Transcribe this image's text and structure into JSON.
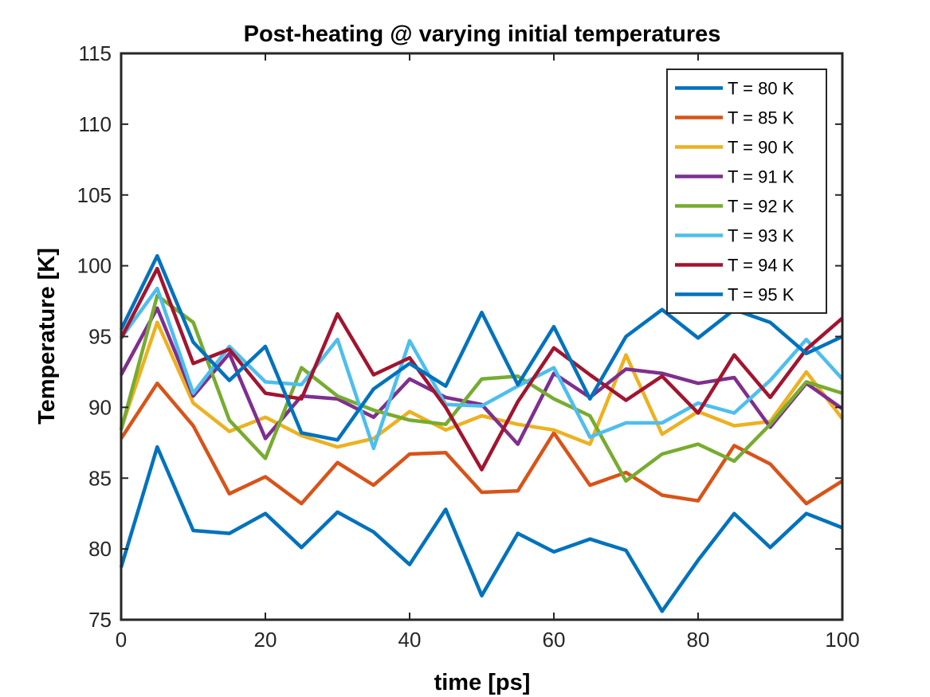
{
  "chart_data": {
    "type": "line",
    "title": "Post-heating @ varying initial temperatures",
    "xlabel": "time [ps]",
    "ylabel": "Temperature [K]",
    "xlim": [
      0,
      100
    ],
    "ylim": [
      75,
      115
    ],
    "xticks": [
      0,
      20,
      40,
      60,
      80,
      100
    ],
    "yticks": [
      75,
      80,
      85,
      90,
      95,
      100,
      105,
      110,
      115
    ],
    "grid": false,
    "legend_position": "top-right",
    "x": [
      0,
      5,
      10,
      15,
      20,
      25,
      30,
      35,
      40,
      45,
      50,
      55,
      60,
      65,
      70,
      75,
      80,
      85,
      90,
      95,
      100
    ],
    "series": [
      {
        "name": "T = 80 K",
        "color": "#0072BD",
        "values": [
          78.7,
          87.2,
          81.3,
          81.1,
          82.5,
          80.1,
          82.6,
          81.2,
          78.9,
          82.8,
          76.7,
          81.1,
          79.8,
          80.7,
          79.9,
          75.6,
          79.2,
          82.5,
          80.1,
          82.5,
          81.5
        ]
      },
      {
        "name": "T = 85 K",
        "color": "#D95319",
        "values": [
          87.8,
          91.7,
          88.7,
          83.9,
          85.1,
          83.2,
          86.1,
          84.5,
          86.7,
          86.8,
          84.0,
          84.1,
          88.2,
          84.5,
          85.4,
          83.8,
          83.4,
          87.3,
          86.0,
          83.2,
          84.8
        ]
      },
      {
        "name": "T = 90 K",
        "color": "#EDB120",
        "values": [
          88.5,
          96.0,
          90.3,
          88.3,
          89.3,
          88.0,
          87.2,
          87.8,
          89.7,
          88.4,
          89.4,
          88.8,
          88.4,
          87.4,
          93.7,
          88.1,
          89.7,
          88.7,
          89.0,
          92.5,
          89.2
        ]
      },
      {
        "name": "T = 91 K",
        "color": "#7E2F8E",
        "values": [
          92.3,
          97.0,
          90.8,
          93.8,
          87.8,
          90.8,
          90.6,
          89.3,
          92.0,
          90.7,
          90.2,
          87.4,
          92.4,
          90.7,
          92.7,
          92.4,
          91.7,
          92.1,
          88.6,
          91.7,
          89.9
        ]
      },
      {
        "name": "T = 92 K",
        "color": "#77AC30",
        "values": [
          88.4,
          97.9,
          96.0,
          89.1,
          86.4,
          92.8,
          90.8,
          89.8,
          89.1,
          88.8,
          92.0,
          92.2,
          90.6,
          89.4,
          84.8,
          86.7,
          87.4,
          86.2,
          88.8,
          91.8,
          91.0
        ]
      },
      {
        "name": "T = 93 K",
        "color": "#4DBEEE",
        "values": [
          94.9,
          98.4,
          91.0,
          94.3,
          91.8,
          91.6,
          94.8,
          87.1,
          94.7,
          90.2,
          90.1,
          91.5,
          92.8,
          87.9,
          88.9,
          88.9,
          90.3,
          89.6,
          91.9,
          94.8,
          92.0
        ]
      },
      {
        "name": "T = 94 K",
        "color": "#A2142F",
        "values": [
          94.9,
          99.8,
          93.1,
          94.1,
          91.0,
          90.6,
          96.6,
          92.3,
          93.5,
          90.0,
          85.6,
          90.4,
          94.2,
          92.3,
          90.5,
          92.2,
          89.6,
          93.7,
          90.7,
          94.1,
          96.3
        ]
      },
      {
        "name": "T = 95 K",
        "color": "#0072BD",
        "values": [
          95.5,
          100.7,
          94.6,
          91.9,
          94.3,
          88.2,
          87.7,
          91.3,
          93.1,
          91.5,
          96.7,
          91.6,
          95.7,
          90.6,
          95.0,
          96.9,
          94.9,
          96.9,
          96.0,
          93.8,
          95.0
        ]
      }
    ]
  }
}
